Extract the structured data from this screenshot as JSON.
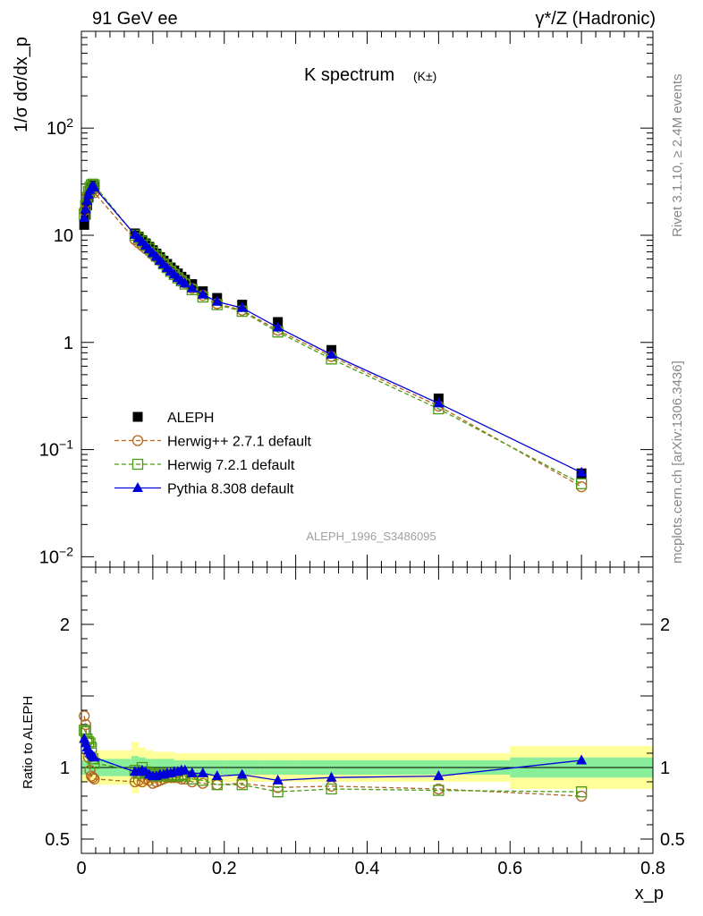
{
  "header": {
    "left_label": "91 GeV ee",
    "right_label": "γ*/Z (Hadronic)"
  },
  "side_labels": {
    "rivet": "Rivet 3.1.10, ≥ 2.4M events",
    "mcplots": "mcplots.cern.ch [arXiv:1306.3436]"
  },
  "chart_data": [
    {
      "panel": "main",
      "type": "line",
      "title": "K spectrum",
      "title_suffix": "(K±)",
      "ylabel": "1/σ dσ/dx_p",
      "xlabel": "x_p",
      "yscale": "log",
      "ylim": [
        0.008,
        800
      ],
      "xlim": [
        0,
        0.8
      ],
      "y_ticks": [
        "10^-2",
        "10^-1",
        "1",
        "10",
        "10^2"
      ],
      "x_ticks": [
        "0",
        "0.2",
        "0.4",
        "0.6",
        "0.8"
      ],
      "legend_position": "lower-left",
      "watermark": "ALEPH_1996_S3486095",
      "x": [
        0.004,
        0.006,
        0.008,
        0.01,
        0.012,
        0.014,
        0.016,
        0.018,
        0.075,
        0.08,
        0.085,
        0.09,
        0.095,
        0.1,
        0.105,
        0.11,
        0.115,
        0.12,
        0.125,
        0.13,
        0.135,
        0.14,
        0.145,
        0.155,
        0.17,
        0.19,
        0.225,
        0.275,
        0.35,
        0.5,
        0.7
      ],
      "series": [
        {
          "name": "ALEPH",
          "color": "#000000",
          "marker": "filled-square",
          "line": "none",
          "values": [
            12.5,
            15.5,
            19.0,
            22.5,
            25.5,
            28.0,
            29.0,
            28.5,
            10.4,
            9.7,
            9.0,
            8.4,
            7.8,
            7.25,
            6.75,
            6.25,
            5.8,
            5.4,
            5.0,
            4.7,
            4.4,
            4.1,
            3.85,
            3.5,
            3.0,
            2.6,
            2.25,
            1.55,
            0.85,
            0.3,
            0.06
          ]
        },
        {
          "name": "Herwig++ 2.7.1 default",
          "color": "#b5651d",
          "marker": "open-circle",
          "line": "dashed",
          "values": [
            17.0,
            20.0,
            22.5,
            24.5,
            25.5,
            26.0,
            26.0,
            25.0,
            9.1,
            8.5,
            8.0,
            7.5,
            7.1,
            6.6,
            6.2,
            5.8,
            5.4,
            5.0,
            4.7,
            4.4,
            4.1,
            3.85,
            3.6,
            3.2,
            2.75,
            2.3,
            2.0,
            1.3,
            0.74,
            0.255,
            0.045
          ]
        },
        {
          "name": "Herwig 7.2.1 default",
          "color": "#4a9a14",
          "marker": "open-square",
          "line": "dashed",
          "values": [
            15.5,
            19.0,
            22.5,
            25.5,
            28.0,
            29.5,
            30.0,
            29.5,
            10.0,
            9.4,
            8.8,
            8.1,
            7.5,
            6.9,
            6.4,
            5.9,
            5.4,
            5.0,
            4.6,
            4.3,
            4.0,
            3.75,
            3.5,
            3.1,
            2.65,
            2.25,
            1.95,
            1.25,
            0.7,
            0.24,
            0.048
          ]
        },
        {
          "name": "Pythia 8.308 default",
          "color": "#0000d8",
          "marker": "filled-triangle",
          "line": "solid",
          "values": [
            14.5,
            17.5,
            21.0,
            24.0,
            26.5,
            28.0,
            28.5,
            28.0,
            10.1,
            9.4,
            8.7,
            8.0,
            7.4,
            6.8,
            6.3,
            5.8,
            5.35,
            4.95,
            4.6,
            4.3,
            4.0,
            3.75,
            3.55,
            3.2,
            2.8,
            2.4,
            2.1,
            1.38,
            0.77,
            0.27,
            0.061
          ]
        }
      ]
    },
    {
      "panel": "ratio",
      "type": "line",
      "ylabel": "Ratio to ALEPH",
      "xlabel": "x_p",
      "ylim": [
        0.4,
        2.4
      ],
      "xlim": [
        0,
        0.8
      ],
      "y_ticks": [
        "0.5",
        "1",
        "2"
      ],
      "x_ticks": [
        "0",
        "0.2",
        "0.4",
        "0.6",
        "0.8"
      ],
      "reference_line": 1,
      "band_x_edges": [
        0,
        0.02,
        0.07,
        0.08,
        0.09,
        0.1,
        0.13,
        0.17,
        0.2,
        0.25,
        0.3,
        0.4,
        0.6,
        0.8
      ],
      "band_inner": [
        0.05,
        0.06,
        0.08,
        0.07,
        0.06,
        0.06,
        0.05,
        0.05,
        0.05,
        0.05,
        0.05,
        0.05,
        0.07
      ],
      "band_outer": [
        0.1,
        0.12,
        0.18,
        0.14,
        0.12,
        0.11,
        0.1,
        0.1,
        0.1,
        0.1,
        0.1,
        0.1,
        0.15
      ],
      "series": [
        {
          "name": "Herwig++ 2.7.1 default",
          "color": "#b5651d",
          "marker": "open-circle",
          "line": "dashed",
          "values": [
            1.36,
            1.3,
            1.18,
            1.07,
            0.98,
            0.94,
            0.93,
            0.92,
            0.9,
            0.91,
            0.9,
            0.92,
            0.91,
            0.89,
            0.9,
            0.91,
            0.92,
            0.93,
            0.93,
            0.93,
            0.93,
            0.92,
            0.92,
            0.9,
            0.89,
            0.88,
            0.89,
            0.86,
            0.87,
            0.85,
            0.8
          ]
        },
        {
          "name": "Herwig 7.2.1 default",
          "color": "#4a9a14",
          "marker": "open-square",
          "line": "dashed",
          "values": [
            1.26,
            1.25,
            1.2,
            1.18,
            1.17,
            1.14,
            1.06,
            1.03,
            0.98,
            0.96,
            1.0,
            0.97,
            0.96,
            0.95,
            0.94,
            0.96,
            0.95,
            0.94,
            0.94,
            0.95,
            0.94,
            0.95,
            0.94,
            0.92,
            0.91,
            0.88,
            0.88,
            0.83,
            0.85,
            0.84,
            0.83
          ]
        },
        {
          "name": "Pythia 8.308 default",
          "color": "#0000d8",
          "marker": "filled-triangle",
          "line": "solid",
          "values": [
            1.2,
            1.17,
            1.14,
            1.12,
            1.1,
            1.09,
            1.08,
            1.07,
            0.97,
            0.97,
            0.98,
            0.97,
            0.95,
            0.94,
            0.94,
            0.95,
            0.95,
            0.96,
            0.96,
            0.97,
            0.97,
            0.98,
            0.98,
            0.96,
            0.96,
            0.94,
            0.95,
            0.91,
            0.93,
            0.94,
            1.05
          ]
        }
      ]
    }
  ]
}
